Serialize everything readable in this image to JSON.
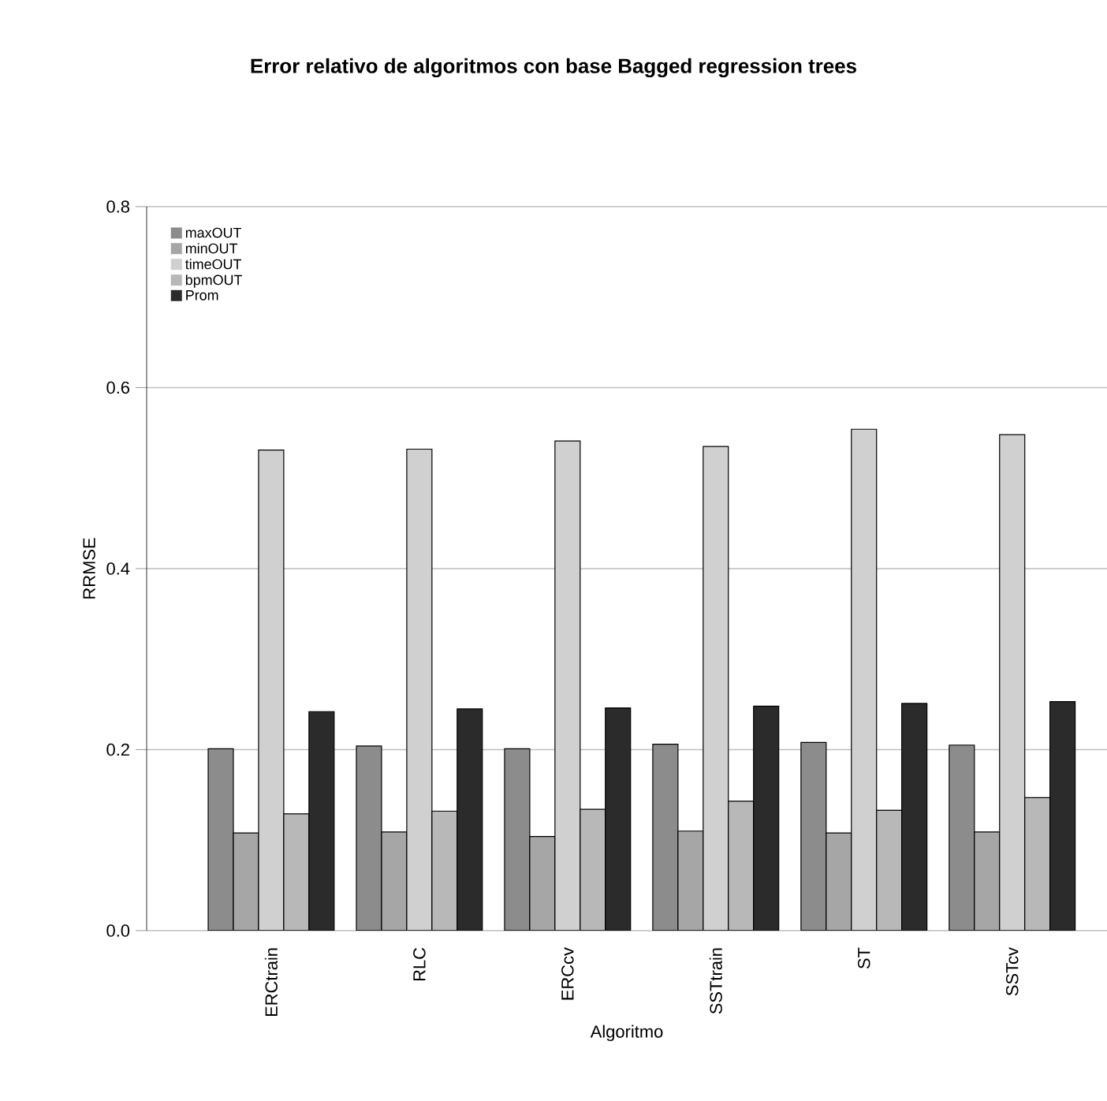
{
  "chart_data": {
    "type": "bar",
    "title": "Error relativo de algoritmos con base Bagged regression trees",
    "xlabel": "Algoritmo",
    "ylabel": "RRMSE",
    "categories": [
      "ERCtrain",
      "RLC",
      "ERCcv",
      "SSTtrain",
      "ST",
      "SSTcv"
    ],
    "series": [
      {
        "name": "maxOUT",
        "color": "#8c8c8c",
        "values": [
          0.201,
          0.204,
          0.201,
          0.206,
          0.208,
          0.205
        ]
      },
      {
        "name": "minOUT",
        "color": "#a6a6a6",
        "values": [
          0.108,
          0.109,
          0.104,
          0.11,
          0.108,
          0.109
        ]
      },
      {
        "name": "timeOUT",
        "color": "#d0d0d0",
        "values": [
          0.531,
          0.532,
          0.541,
          0.535,
          0.554,
          0.548
        ]
      },
      {
        "name": "bpmOUT",
        "color": "#b8b8b8",
        "values": [
          0.129,
          0.132,
          0.134,
          0.143,
          0.133,
          0.147
        ]
      },
      {
        "name": "Prom",
        "color": "#2b2b2b",
        "values": [
          0.242,
          0.245,
          0.246,
          0.248,
          0.251,
          0.253
        ]
      }
    ],
    "ylim": [
      0,
      0.8
    ],
    "yticks": [
      {
        "value": 0,
        "label": "0.0"
      },
      {
        "value": 0.2,
        "label": "0.2"
      },
      {
        "value": 0.4,
        "label": "0.4"
      },
      {
        "value": 0.6,
        "label": "0.6"
      },
      {
        "value": 0.8,
        "label": "0.8"
      }
    ],
    "grid": "y",
    "legend": "top left"
  }
}
